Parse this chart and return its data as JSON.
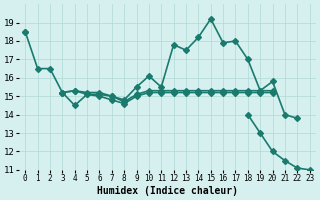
{
  "xlabel": "Humidex (Indice chaleur)",
  "ylabel": "",
  "bg_color": "#d6f0ef",
  "line_color": "#1a7a6e",
  "x": [
    0,
    1,
    2,
    3,
    4,
    5,
    6,
    7,
    8,
    9,
    10,
    11,
    12,
    13,
    14,
    15,
    16,
    17,
    18,
    19,
    20,
    21,
    22,
    23
  ],
  "series1": [
    18.5,
    16.5,
    16.5,
    15.2,
    15.3,
    15.2,
    15.2,
    15.0,
    14.8,
    15.5,
    16.1,
    15.5,
    17.8,
    17.5,
    18.2,
    19.2,
    17.9,
    18.0,
    17.0,
    15.3,
    15.8,
    14.0,
    13.8,
    null
  ],
  "series2": [
    null,
    null,
    null,
    15.2,
    15.3,
    15.1,
    15.1,
    15.0,
    14.7,
    15.1,
    15.3,
    15.3,
    15.3,
    15.3,
    15.3,
    15.3,
    15.3,
    15.3,
    15.3,
    15.3,
    15.3,
    null,
    null,
    null
  ],
  "series3": [
    null,
    null,
    null,
    15.2,
    14.5,
    15.1,
    15.0,
    14.8,
    14.6,
    15.0,
    15.2,
    15.2,
    15.2,
    15.2,
    15.2,
    15.2,
    15.2,
    15.2,
    15.2,
    15.2,
    15.2,
    null,
    null,
    null
  ],
  "series4": [
    18.5,
    null,
    null,
    null,
    null,
    null,
    null,
    null,
    null,
    null,
    null,
    null,
    null,
    null,
    null,
    null,
    null,
    null,
    14.0,
    13.0,
    12.0,
    11.5,
    11.1,
    11.0
  ],
  "ylim": [
    11,
    20
  ],
  "xlim": [
    -0.5,
    23.5
  ],
  "yticks": [
    11,
    12,
    13,
    14,
    15,
    16,
    17,
    18,
    19
  ],
  "xtick_labels": [
    "0",
    "1",
    "2",
    "3",
    "4",
    "5",
    "6",
    "7",
    "8",
    "9",
    "10",
    "11",
    "12",
    "13",
    "14",
    "15",
    "16",
    "17",
    "18",
    "19",
    "20",
    "21",
    "22",
    "23"
  ],
  "grid_color": "#b0d8d4",
  "marker": "D",
  "markersize": 3,
  "linewidth": 1.2
}
